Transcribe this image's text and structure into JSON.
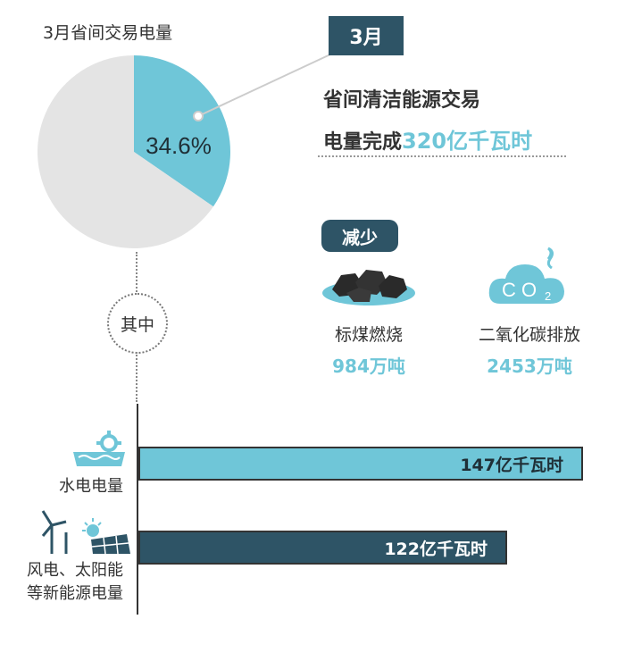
{
  "chart_data": {
    "pie": {
      "type": "pie",
      "title": "3月省间交易电量",
      "slices": [
        {
          "value": 34.6,
          "label": "34.6%",
          "color": "#6fc6d8"
        },
        {
          "value": 65.4,
          "label": "",
          "color": "#e4e4e4"
        }
      ]
    },
    "bars": {
      "type": "bar",
      "orientation": "horizontal",
      "categories": [
        "水电电量",
        "风电、太阳能等新能源电量"
      ],
      "values": [
        147,
        122
      ],
      "value_labels": [
        "147亿千瓦时",
        "122亿千瓦时"
      ],
      "unit": "亿千瓦时",
      "xlim": [
        0,
        147
      ],
      "colors": [
        "#6fc6d8",
        "#2e5466"
      ]
    }
  },
  "month_badge": "3月",
  "headline": {
    "line1": "省间清洁能源交易",
    "line2_prefix": "电量完成",
    "line2_value": "320亿千瓦时"
  },
  "reduction": {
    "badge": "减少",
    "items": [
      {
        "icon": "coal-icon",
        "label": "标煤燃烧",
        "value": "984万吨"
      },
      {
        "icon": "co2-cloud-icon",
        "label": "二氧化碳排放",
        "value": "2453万吨"
      }
    ]
  },
  "breakdown": {
    "title": "其中",
    "categories": [
      {
        "icon": "hydro-dam-icon",
        "label_lines": [
          "水电电量"
        ]
      },
      {
        "icon": "wind-solar-icon",
        "label_lines": [
          "风电、太阳能",
          "等新能源电量"
        ]
      }
    ]
  },
  "colors": {
    "light": "#6fc6d8",
    "dark": "#2e5466",
    "grey": "#e4e4e4"
  }
}
